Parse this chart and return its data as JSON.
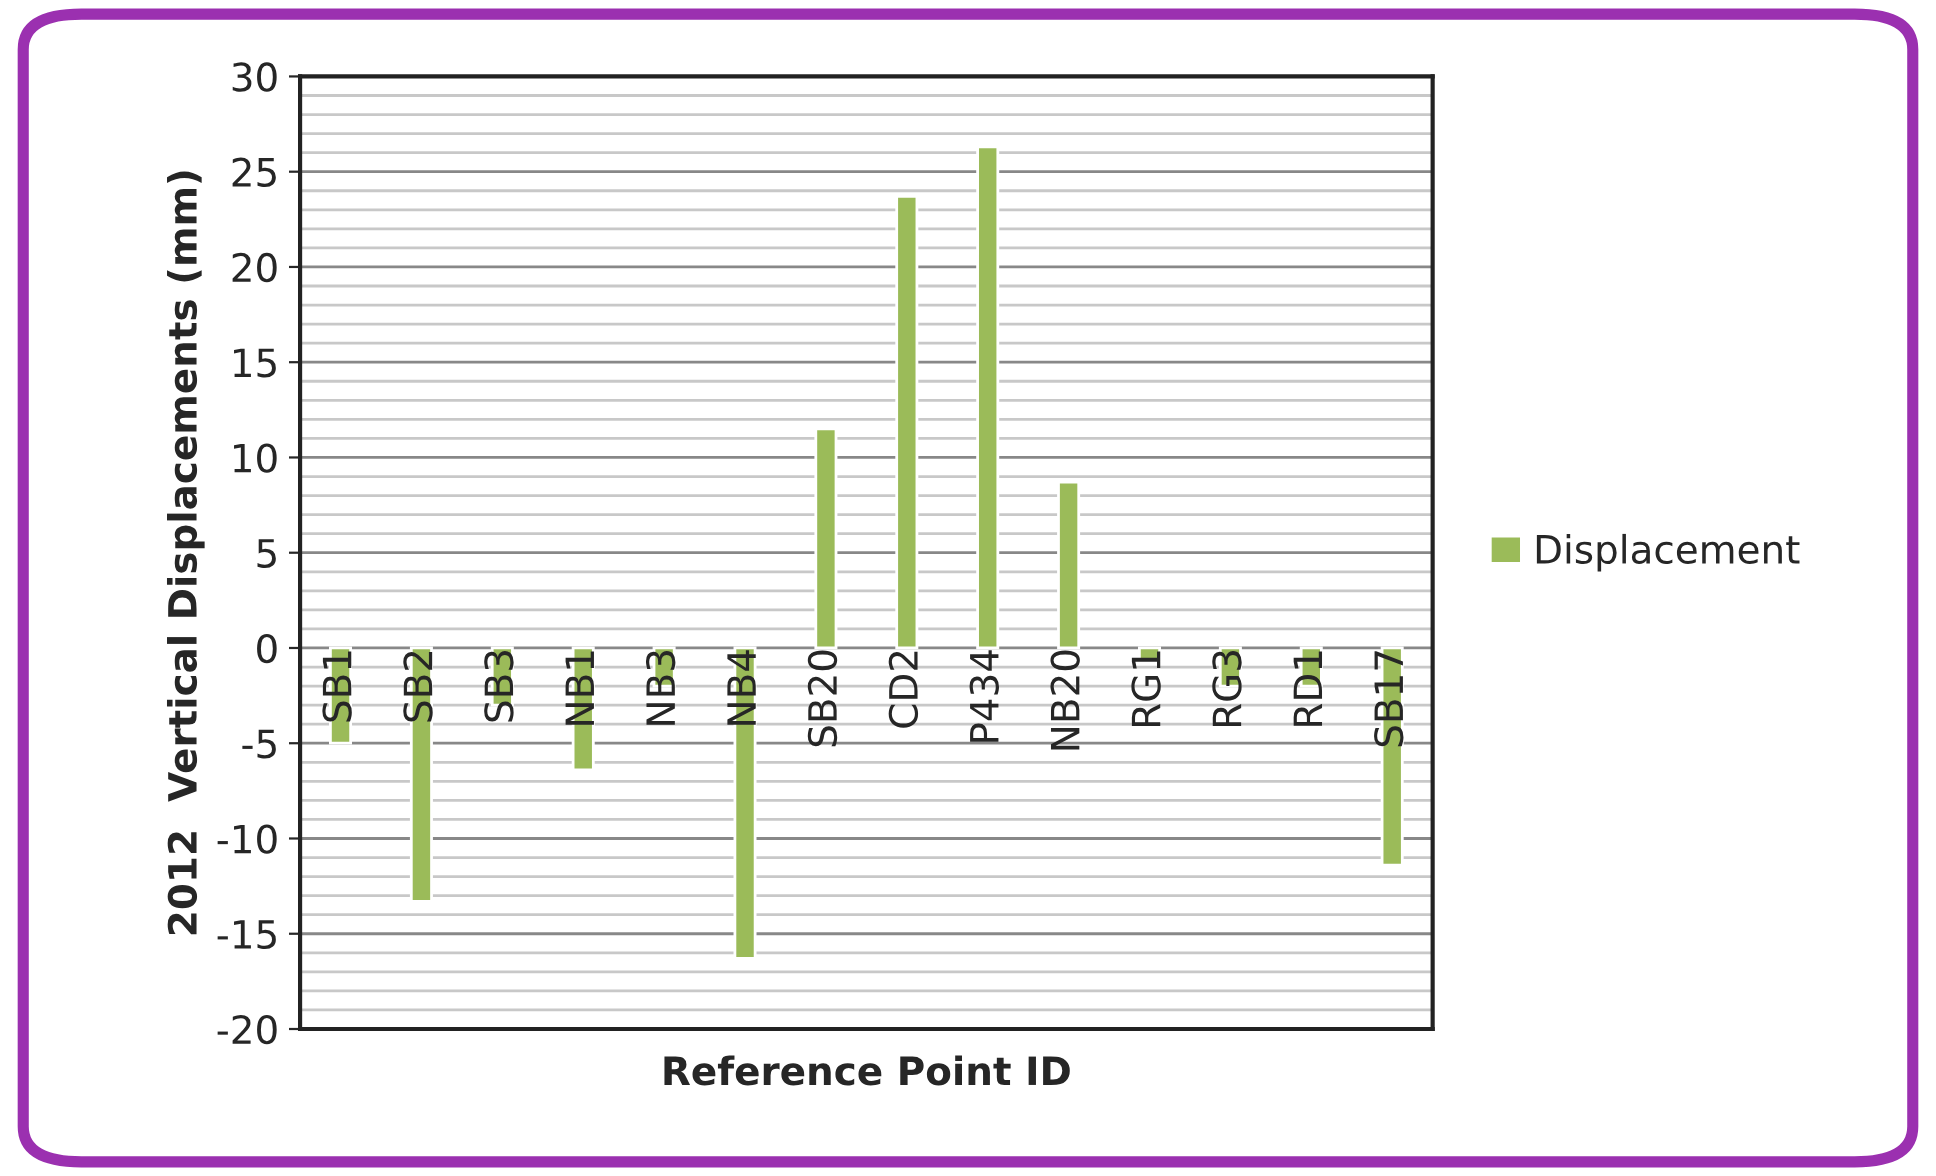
{
  "chart_data": {
    "type": "bar",
    "xlabel": "Reference Point ID",
    "ylabel": "2012  Vertical Displacements (mm)",
    "categories": [
      "SB1",
      "SB2",
      "SB3",
      "NB1",
      "NB3",
      "NB4",
      "SB20",
      "CD2",
      "P434",
      "NB20",
      "RG1",
      "RG3",
      "RD1",
      "SB17"
    ],
    "series": [
      {
        "name": "Displacement",
        "color": "#9bbb59",
        "values": [
          -5.0,
          -13.3,
          -3.0,
          -6.4,
          -2.0,
          -16.3,
          11.5,
          23.7,
          26.3,
          8.7,
          -0.6,
          -2.0,
          -2.0,
          -11.4
        ]
      }
    ],
    "ylim": [
      -20,
      30
    ],
    "yticks": [
      -20,
      -15,
      -10,
      -5,
      0,
      5,
      10,
      15,
      20,
      25,
      30
    ],
    "grid": "y",
    "legend": "right"
  }
}
